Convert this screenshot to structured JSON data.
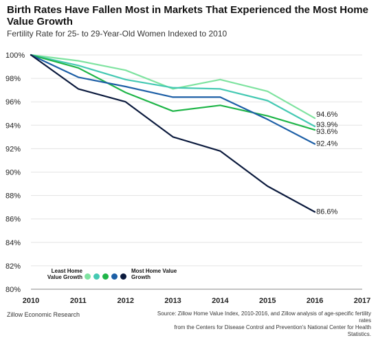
{
  "header": {
    "title": "Birth Rates Have Fallen Most in Markets That Experienced the Most Home Value Growth",
    "subtitle": "Fertility Rate for 25- to 29-Year-Old Women Indexed to 2010"
  },
  "footer": {
    "left": "Zillow Economic Research",
    "source_line1": "Source: Zillow Home Value Index, 2010-2016, and Zillow analysis of age-specific fertility rates",
    "source_line2": "from the Centers for Disease Control and Prevention's National Center for Health Statistics."
  },
  "legend": {
    "left_label": "Least Home Value Growth",
    "right_label": "Most Home Value Growth"
  },
  "chart_data": {
    "type": "line",
    "title": "Birth Rates Have Fallen Most in Markets That Experienced the Most Home Value Growth",
    "subtitle": "Fertility Rate for 25- to 29-Year-Old Women Indexed to 2010",
    "xlabel": "",
    "ylabel": "",
    "x": [
      2010,
      2011,
      2012,
      2013,
      2014,
      2015,
      2016
    ],
    "x_ticks": [
      "2010",
      "2011",
      "2012",
      "2013",
      "2014",
      "2015",
      "2016",
      "2017"
    ],
    "xlim": [
      2010,
      2017
    ],
    "y_ticks": [
      "100%",
      "98%",
      "96%",
      "94%",
      "92%",
      "90%",
      "88%",
      "86%",
      "84%",
      "82%",
      "80%"
    ],
    "ylim": [
      80,
      100
    ],
    "grid": true,
    "legend_position": "bottom-left",
    "series": [
      {
        "color": "#7fe3a0",
        "values": [
          100,
          99.5,
          98.7,
          97.1,
          97.9,
          96.9,
          94.6
        ],
        "end_label": "94.6%"
      },
      {
        "color": "#45c9b3",
        "values": [
          100,
          99.1,
          97.9,
          97.2,
          97.1,
          96.1,
          93.9
        ],
        "end_label": "93.9%"
      },
      {
        "color": "#1fb548",
        "values": [
          100,
          98.9,
          96.8,
          95.2,
          95.7,
          94.8,
          93.6
        ],
        "end_label": "93.6%"
      },
      {
        "color": "#1d5fa6",
        "values": [
          100,
          98.1,
          97.3,
          96.4,
          96.4,
          94.5,
          92.4
        ],
        "end_label": "92.4%"
      },
      {
        "color": "#0b1a3d",
        "values": [
          100,
          97.1,
          96.0,
          93.0,
          91.8,
          88.8,
          86.6
        ],
        "end_label": "86.6%"
      }
    ]
  }
}
